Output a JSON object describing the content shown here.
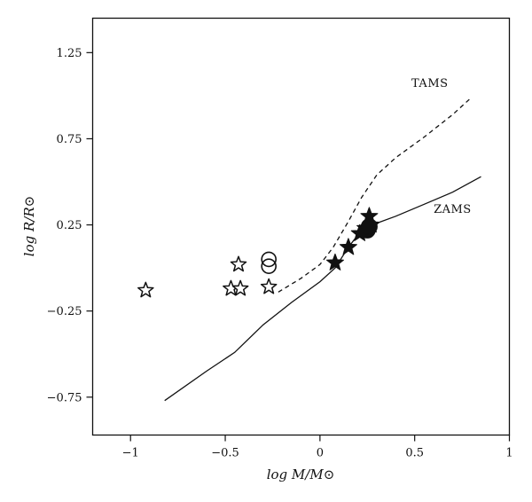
{
  "chart_data": {
    "type": "scatter",
    "xlabel": "log M/M⊙",
    "ylabel": "log R/R⊙",
    "xlim": [
      -1.2,
      1.0
    ],
    "ylim": [
      -0.97,
      1.45
    ],
    "x_ticks": [
      {
        "value": -1,
        "label": "−1"
      },
      {
        "value": -0.5,
        "label": "−0.5"
      },
      {
        "value": 0,
        "label": "0"
      },
      {
        "value": 0.5,
        "label": "0.5"
      },
      {
        "value": 1,
        "label": "1"
      }
    ],
    "y_ticks": [
      {
        "value": 1.25,
        "label": "1.25"
      },
      {
        "value": 0.75,
        "label": "0.75"
      },
      {
        "value": 0.25,
        "label": "0.25"
      },
      {
        "value": -0.25,
        "label": "−0.25"
      },
      {
        "value": -0.75,
        "label": "−0.75"
      }
    ],
    "lines": [
      {
        "label": "ZAMS",
        "style": "solid",
        "points": [
          [
            -0.82,
            -0.77
          ],
          [
            -0.6,
            -0.6
          ],
          [
            -0.45,
            -0.49
          ],
          [
            -0.3,
            -0.33
          ],
          [
            -0.15,
            -0.2
          ],
          [
            0.0,
            -0.08
          ],
          [
            0.08,
            0.0
          ],
          [
            0.15,
            0.12
          ],
          [
            0.22,
            0.22
          ],
          [
            0.3,
            0.26
          ],
          [
            0.4,
            0.3
          ],
          [
            0.55,
            0.37
          ],
          [
            0.7,
            0.44
          ],
          [
            0.85,
            0.53
          ]
        ]
      },
      {
        "label": "TAMS",
        "style": "dashed",
        "points": [
          [
            -0.22,
            -0.14
          ],
          [
            -0.1,
            -0.06
          ],
          [
            0.0,
            0.02
          ],
          [
            0.07,
            0.12
          ],
          [
            0.15,
            0.27
          ],
          [
            0.22,
            0.41
          ],
          [
            0.3,
            0.54
          ],
          [
            0.4,
            0.64
          ],
          [
            0.55,
            0.76
          ],
          [
            0.7,
            0.89
          ],
          [
            0.8,
            0.99
          ]
        ]
      }
    ],
    "series": [
      {
        "marker": "open-star",
        "points": [
          [
            -0.92,
            -0.13
          ],
          [
            -0.47,
            -0.12
          ],
          [
            -0.42,
            -0.12
          ],
          [
            -0.43,
            0.02
          ],
          [
            -0.27,
            -0.11
          ]
        ]
      },
      {
        "marker": "open-circle",
        "points": [
          [
            -0.27,
            0.05
          ],
          [
            -0.27,
            0.01
          ]
        ]
      },
      {
        "marker": "filled-star",
        "points": [
          [
            0.08,
            0.03
          ],
          [
            0.15,
            0.12
          ],
          [
            0.21,
            0.2
          ],
          [
            0.24,
            0.23
          ],
          [
            0.26,
            0.3
          ],
          [
            0.27,
            0.25
          ]
        ]
      },
      {
        "marker": "filled-circle",
        "points": [
          [
            0.25,
            0.22
          ],
          [
            0.26,
            0.24
          ]
        ]
      }
    ],
    "annotations": [
      {
        "text": "TAMS",
        "at": [
          0.58,
          1.05
        ]
      },
      {
        "text": "ZAMS",
        "at": [
          0.7,
          0.32
        ]
      }
    ],
    "grid": false,
    "legend": "none"
  }
}
